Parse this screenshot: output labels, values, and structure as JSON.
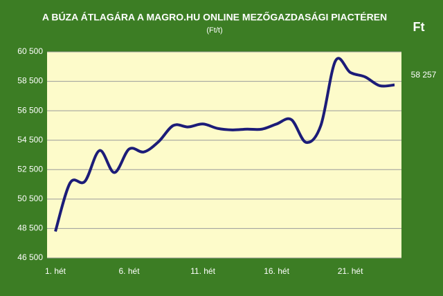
{
  "chart_data": {
    "type": "line",
    "title": "A BÚZA ÁTLAGÁRA A MAGRO.HU ONLINE MEZŐGAZDASÁGI PIACTÉREN",
    "subtitle": "(Ft/t)",
    "unit": "Ft",
    "categories": [
      "1. hét",
      null,
      null,
      null,
      null,
      "6. hét",
      null,
      null,
      null,
      null,
      "11. hét",
      null,
      null,
      null,
      null,
      "16. hét",
      null,
      null,
      null,
      null,
      "21. hét",
      null,
      null,
      null
    ],
    "series": [
      {
        "name": "Búza átlagár",
        "color": "#1c1c78",
        "values": [
          48300,
          51600,
          51700,
          53800,
          52300,
          53900,
          53700,
          54400,
          55500,
          55400,
          55600,
          55300,
          55200,
          55250,
          55250,
          55600,
          55900,
          54350,
          55500,
          59900,
          59100,
          58800,
          58200,
          58257
        ],
        "value_labels": [
          null,
          null,
          null,
          null,
          null,
          null,
          null,
          null,
          null,
          null,
          null,
          null,
          null,
          null,
          null,
          null,
          null,
          null,
          null,
          null,
          null,
          null,
          null,
          "58 257"
        ]
      }
    ],
    "ylim": [
      46500,
      60500
    ],
    "yticks": [
      {
        "value": 46500,
        "label": "46 500"
      },
      {
        "value": 48500,
        "label": "48 500"
      },
      {
        "value": 50500,
        "label": "50 500"
      },
      {
        "value": 52500,
        "label": "52 500"
      },
      {
        "value": 54500,
        "label": "54 500"
      },
      {
        "value": 56500,
        "label": "56 500"
      },
      {
        "value": 58500,
        "label": "58 500"
      },
      {
        "value": 60500,
        "label": "60 500"
      }
    ],
    "grid": true
  }
}
